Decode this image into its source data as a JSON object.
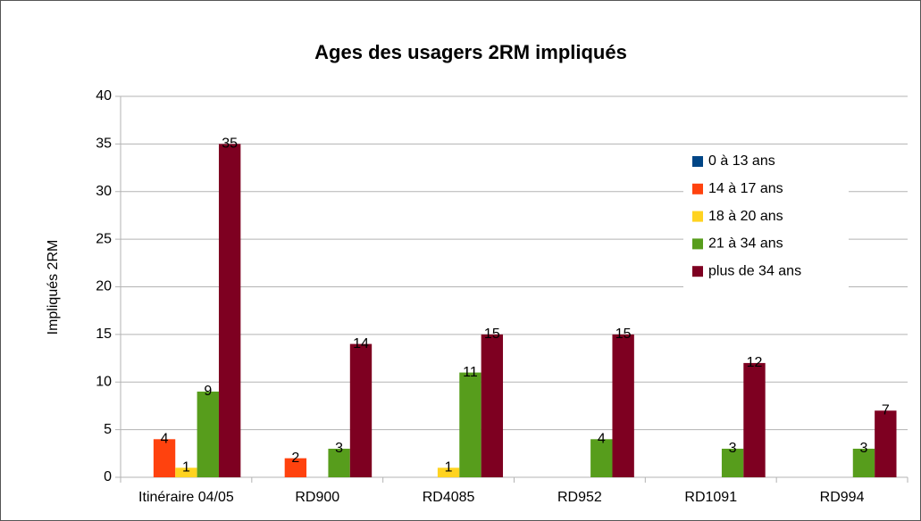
{
  "chart_data": {
    "type": "bar",
    "title": "Ages des usagers 2RM impliqués",
    "y_label": "Impliqués 2RM",
    "categories": [
      "Itinéraire 04/05",
      "RD900",
      "RD4085",
      "RD952",
      "RD1091",
      "RD994"
    ],
    "series": [
      {
        "name": "0 à 13 ans",
        "color": "#004586",
        "values": [
          null,
          null,
          null,
          null,
          null,
          null
        ]
      },
      {
        "name": "14 à 17 ans",
        "color": "#ff420e",
        "values": [
          4,
          2,
          null,
          null,
          null,
          null
        ]
      },
      {
        "name": "18 à 20 ans",
        "color": "#ffd320",
        "values": [
          1,
          null,
          1,
          null,
          null,
          null
        ]
      },
      {
        "name": "21 à 34 ans",
        "color": "#579d1c",
        "values": [
          9,
          3,
          11,
          4,
          3,
          3
        ]
      },
      {
        "name": "plus de 34 ans",
        "color": "#7e0021",
        "values": [
          35,
          14,
          15,
          15,
          12,
          7
        ]
      }
    ],
    "ylim": [
      0,
      40
    ],
    "yticks": [
      0,
      5,
      10,
      15,
      20,
      25,
      30,
      35,
      40
    ],
    "grid": true,
    "legend": "upper right"
  }
}
